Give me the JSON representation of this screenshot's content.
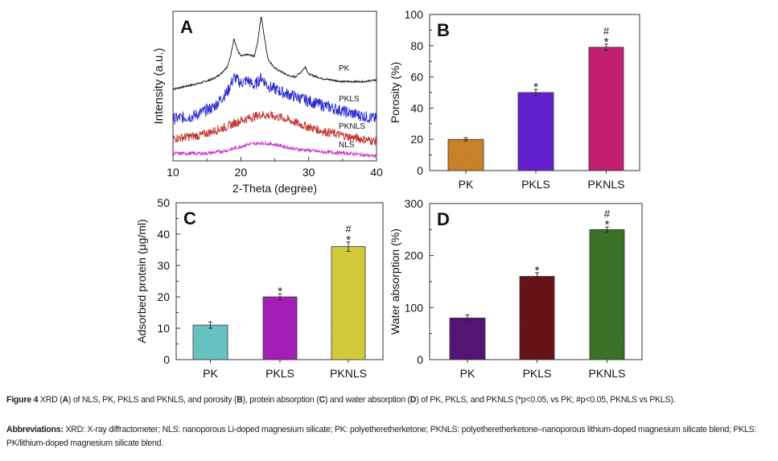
{
  "chart_data": [
    {
      "panel": "A",
      "type": "line",
      "xlabel": "2-Theta (degree)",
      "ylabel": "Intensity (a.u.)",
      "xlim": [
        10,
        40
      ],
      "ylim": [
        0,
        100
      ],
      "xticks": [
        10,
        20,
        30,
        40
      ],
      "series": [
        {
          "name": "PK",
          "color": "#111111",
          "noise": 0.6,
          "points": [
            [
              10,
              48
            ],
            [
              12,
              50
            ],
            [
              14,
              52
            ],
            [
              16,
              55
            ],
            [
              17,
              58
            ],
            [
              18,
              63
            ],
            [
              18.5,
              70
            ],
            [
              19,
              82
            ],
            [
              19.5,
              74
            ],
            [
              20,
              70
            ],
            [
              21,
              71
            ],
            [
              22,
              70
            ],
            [
              22.5,
              80
            ],
            [
              23,
              97
            ],
            [
              23.5,
              82
            ],
            [
              24,
              68
            ],
            [
              25,
              62
            ],
            [
              27,
              57
            ],
            [
              28,
              56
            ],
            [
              29,
              60
            ],
            [
              29.5,
              63
            ],
            [
              30,
              58
            ],
            [
              32,
              55
            ],
            [
              35,
              53
            ],
            [
              38,
              53
            ],
            [
              40,
              54
            ]
          ]
        },
        {
          "name": "PKLS",
          "color": "#2a2ad0",
          "noise": 4,
          "points": [
            [
              10,
              28
            ],
            [
              13,
              30
            ],
            [
              16,
              36
            ],
            [
              18,
              46
            ],
            [
              19,
              56
            ],
            [
              20,
              52
            ],
            [
              21,
              54
            ],
            [
              22,
              50
            ],
            [
              23,
              56
            ],
            [
              24,
              50
            ],
            [
              26,
              46
            ],
            [
              28,
              43
            ],
            [
              30,
              40
            ],
            [
              33,
              36
            ],
            [
              36,
              32
            ],
            [
              40,
              28
            ]
          ]
        },
        {
          "name": "PKNLS",
          "color": "#c0302c",
          "noise": 3,
          "points": [
            [
              10,
              15
            ],
            [
              14,
              17
            ],
            [
              18,
              23
            ],
            [
              20,
              27
            ],
            [
              23,
              31
            ],
            [
              26,
              29
            ],
            [
              29,
              24
            ],
            [
              32,
              20
            ],
            [
              36,
              16
            ],
            [
              40,
              13
            ]
          ]
        },
        {
          "name": "NLS",
          "color": "#cc33cc",
          "noise": 1.2,
          "points": [
            [
              10,
              5
            ],
            [
              15,
              5
            ],
            [
              18,
              7
            ],
            [
              21,
              11
            ],
            [
              23,
              12
            ],
            [
              25,
              11
            ],
            [
              28,
              8
            ],
            [
              32,
              6
            ],
            [
              36,
              5
            ],
            [
              40,
              3
            ]
          ]
        }
      ]
    },
    {
      "panel": "B",
      "type": "bar",
      "ylabel": "Porosity (%)",
      "ylim": [
        0,
        100
      ],
      "yticks": [
        0,
        20,
        40,
        60,
        80,
        100
      ],
      "categories": [
        "PK",
        "PKLS",
        "PKNLS"
      ],
      "values": [
        20,
        50,
        79
      ],
      "errors": [
        1,
        2,
        2
      ],
      "colors": [
        "#d98b2b",
        "#6a22e0",
        "#d4207a"
      ],
      "annotations": [
        "",
        "*",
        "*\n#"
      ]
    },
    {
      "panel": "C",
      "type": "bar",
      "ylabel": "Adsorbed protein (µg/ml)",
      "ylim": [
        0,
        50
      ],
      "yticks": [
        0,
        10,
        20,
        30,
        40,
        50
      ],
      "categories": [
        "PK",
        "PKLS",
        "PKNLS"
      ],
      "values": [
        11,
        20,
        36
      ],
      "errors": [
        1,
        1,
        1.5
      ],
      "colors": [
        "#70d2d2",
        "#b320c8",
        "#e2dc3c"
      ],
      "annotations": [
        "",
        "*",
        "*\n#"
      ]
    },
    {
      "panel": "D",
      "type": "bar",
      "ylabel": "Water absorption (%)",
      "ylim": [
        0,
        300
      ],
      "yticks": [
        0,
        100,
        200,
        300
      ],
      "categories": [
        "PK",
        "PKLS",
        "PKNLS"
      ],
      "values": [
        80,
        160,
        250
      ],
      "errors": [
        6,
        7,
        5
      ],
      "colors": [
        "#5a167c",
        "#6e1519",
        "#3f7b2b"
      ],
      "annotations": [
        "",
        "*",
        "*\n#"
      ]
    }
  ],
  "caption": {
    "fig_label": "Figure 4",
    "t1": " XRD (",
    "a": "A",
    "t2": ") of NLS, PK, PKLS and PKNLS, and porosity (",
    "b": "B",
    "t3": "), protein absorption (",
    "c": "C",
    "t4": ") and water absorption (",
    "d": "D",
    "t5": ") of PK, PKLS, and PKNLS (*p<0.05, vs PK; #p<0.05, PKNLS vs PKLS).",
    "abbr_label": "Abbreviations:",
    "abbr_text": " XRD: X-ray diffractometer; NLS: nanoporous Li-doped magnesium silicate; PK: polyetheretherketone; PKNLS: polyetheretherketone–nanoporous lithium-doped magnesium silicate blend; PKLS: PK/lithium-doped magnesium silicate blend."
  }
}
